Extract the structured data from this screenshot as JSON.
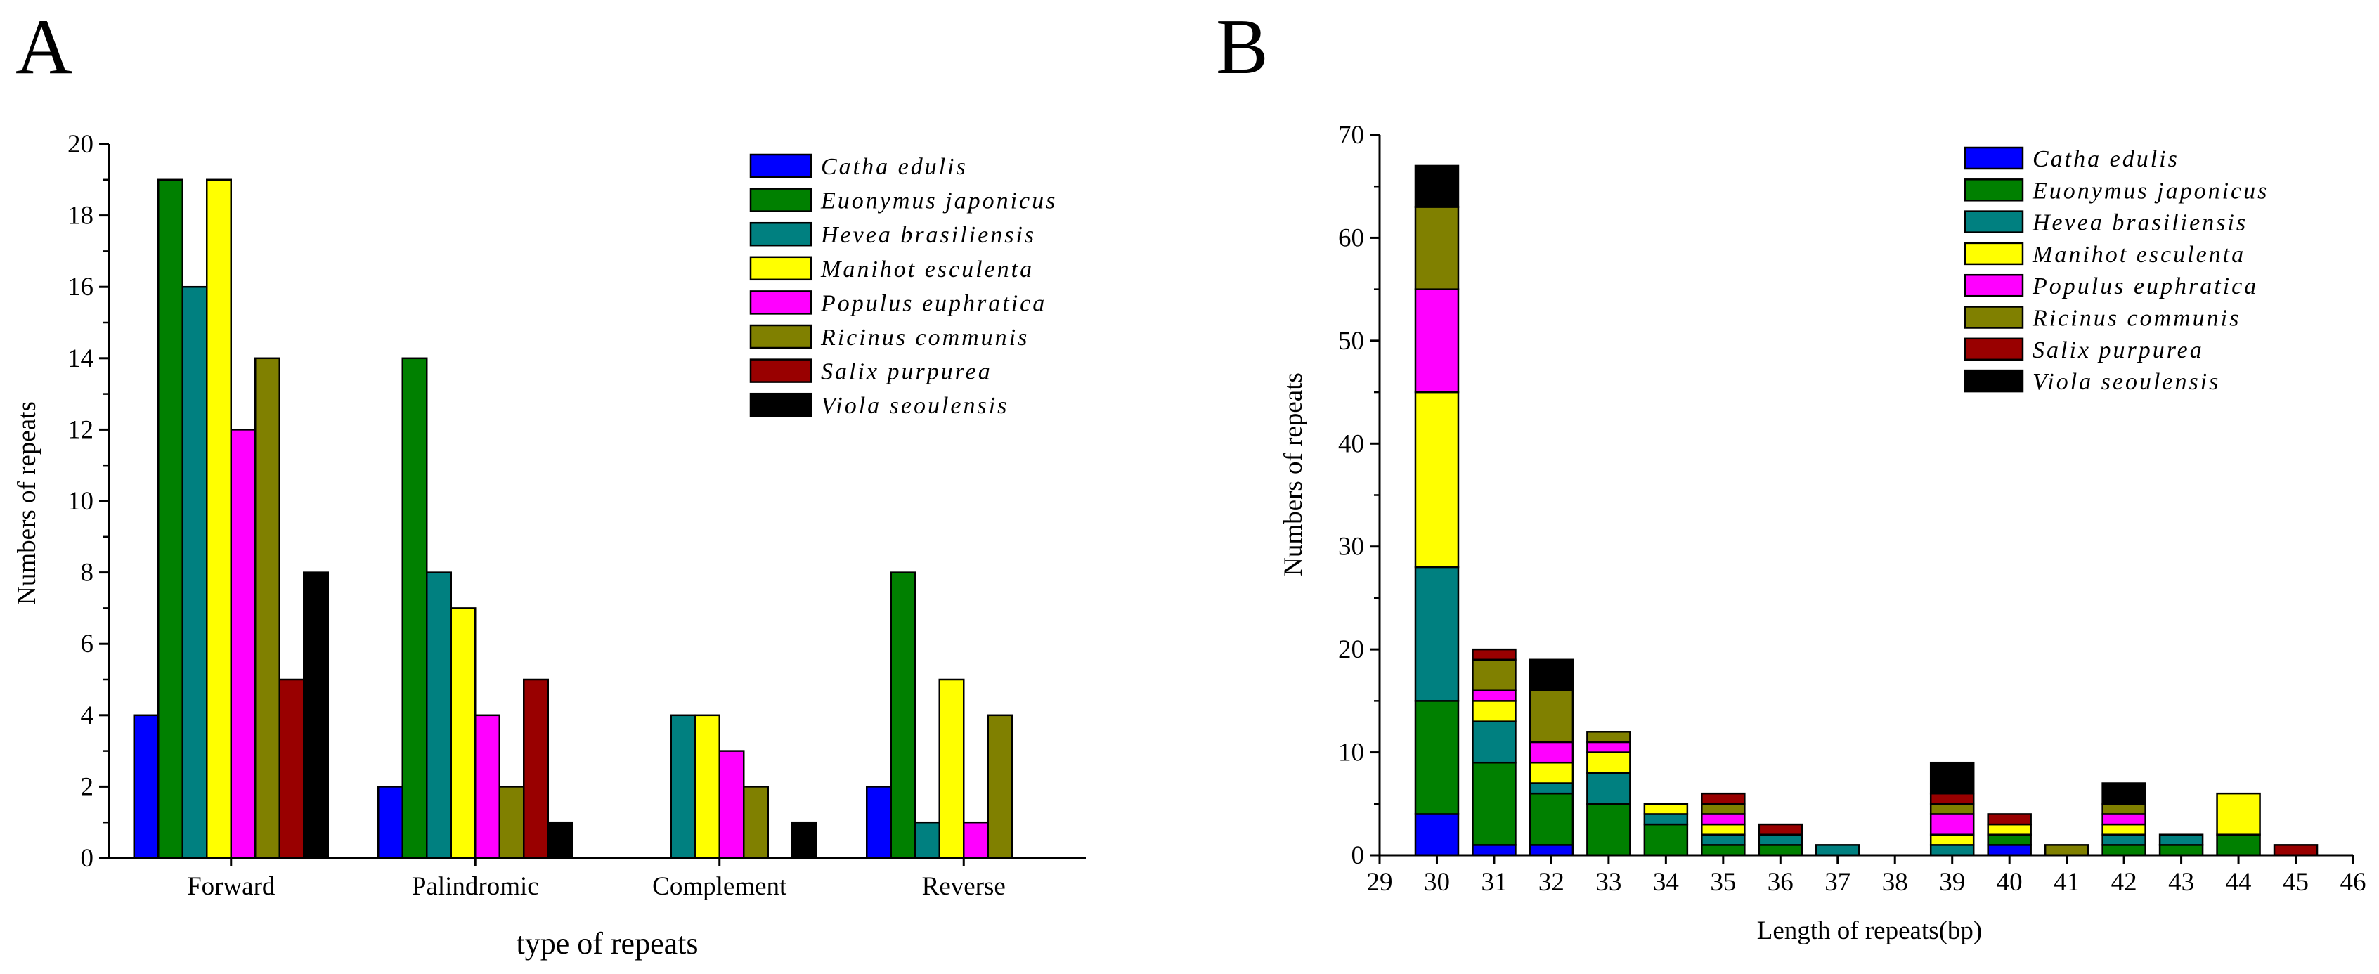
{
  "colors": {
    "Catha edulis": "#0000ff",
    "Euonymus japonicus": "#008000",
    "Hevea brasiliensis": "#008080",
    "Manihot esculenta": "#ffff00",
    "Populus euphratica": "#ff00ff",
    "Ricinus communis": "#808000",
    "Salix purpurea": "#990000",
    "Viola seoulensis": "#000000"
  },
  "chart_data": [
    {
      "panel": "A",
      "type": "bar",
      "title": "",
      "xlabel": "type of repeats",
      "ylabel": "Numbers of repeats",
      "ylim": [
        0,
        20
      ],
      "yticks": [
        0,
        2,
        4,
        6,
        8,
        10,
        12,
        14,
        16,
        18,
        20
      ],
      "categories": [
        "Forward",
        "Palindromic",
        "Complement",
        "Reverse"
      ],
      "legend_position": "top-right",
      "series": [
        {
          "name": "Catha edulis",
          "values": [
            4,
            2,
            0,
            2
          ]
        },
        {
          "name": "Euonymus japonicus",
          "values": [
            19,
            14,
            0,
            8
          ]
        },
        {
          "name": "Hevea brasiliensis",
          "values": [
            16,
            8,
            4,
            1
          ]
        },
        {
          "name": "Manihot esculenta",
          "values": [
            19,
            7,
            4,
            5
          ]
        },
        {
          "name": "Populus euphratica",
          "values": [
            12,
            4,
            3,
            1
          ]
        },
        {
          "name": "Ricinus communis",
          "values": [
            14,
            2,
            2,
            4
          ]
        },
        {
          "name": "Salix purpurea",
          "values": [
            5,
            5,
            0,
            0
          ]
        },
        {
          "name": "Viola seoulensis",
          "values": [
            8,
            1,
            1,
            0
          ]
        }
      ]
    },
    {
      "panel": "B",
      "type": "bar",
      "stacked": true,
      "title": "",
      "xlabel": "Length of repeats(bp)",
      "ylabel": "Numbers of repeats",
      "ylim": [
        0,
        70
      ],
      "yticks": [
        0,
        10,
        20,
        30,
        40,
        50,
        60,
        70
      ],
      "xlim": [
        29,
        46
      ],
      "xticks": [
        29,
        30,
        31,
        32,
        33,
        34,
        35,
        36,
        37,
        38,
        39,
        40,
        41,
        42,
        43,
        44,
        45,
        46
      ],
      "x": [
        30,
        31,
        32,
        33,
        34,
        35,
        36,
        37,
        39,
        40,
        41,
        42,
        43,
        44,
        45
      ],
      "legend_position": "top-right",
      "series": [
        {
          "name": "Catha edulis",
          "values": [
            4,
            1,
            1,
            0,
            0,
            0,
            0,
            0,
            0,
            1,
            0,
            0,
            0,
            0,
            0
          ]
        },
        {
          "name": "Euonymus japonicus",
          "values": [
            11,
            8,
            5,
            5,
            3,
            1,
            1,
            0,
            0,
            1,
            0,
            1,
            1,
            2,
            0
          ]
        },
        {
          "name": "Hevea brasiliensis",
          "values": [
            13,
            4,
            1,
            3,
            1,
            1,
            1,
            1,
            1,
            0,
            0,
            1,
            1,
            0,
            0
          ]
        },
        {
          "name": "Manihot esculenta",
          "values": [
            17,
            2,
            2,
            2,
            1,
            1,
            0,
            0,
            1,
            1,
            0,
            1,
            0,
            4,
            0
          ]
        },
        {
          "name": "Populus euphratica",
          "values": [
            10,
            1,
            2,
            1,
            0,
            1,
            0,
            0,
            2,
            0,
            0,
            1,
            0,
            0,
            0
          ]
        },
        {
          "name": "Ricinus communis",
          "values": [
            8,
            3,
            5,
            1,
            0,
            1,
            0,
            0,
            1,
            0,
            1,
            1,
            0,
            0,
            0
          ]
        },
        {
          "name": "Salix purpurea",
          "values": [
            0,
            1,
            0,
            0,
            0,
            1,
            1,
            0,
            1,
            1,
            0,
            0,
            0,
            0,
            1
          ]
        },
        {
          "name": "Viola seoulensis",
          "values": [
            4,
            0,
            3,
            0,
            0,
            0,
            0,
            0,
            3,
            0,
            0,
            2,
            0,
            0,
            0
          ]
        }
      ]
    }
  ],
  "panel_labels": [
    "A",
    "B"
  ]
}
